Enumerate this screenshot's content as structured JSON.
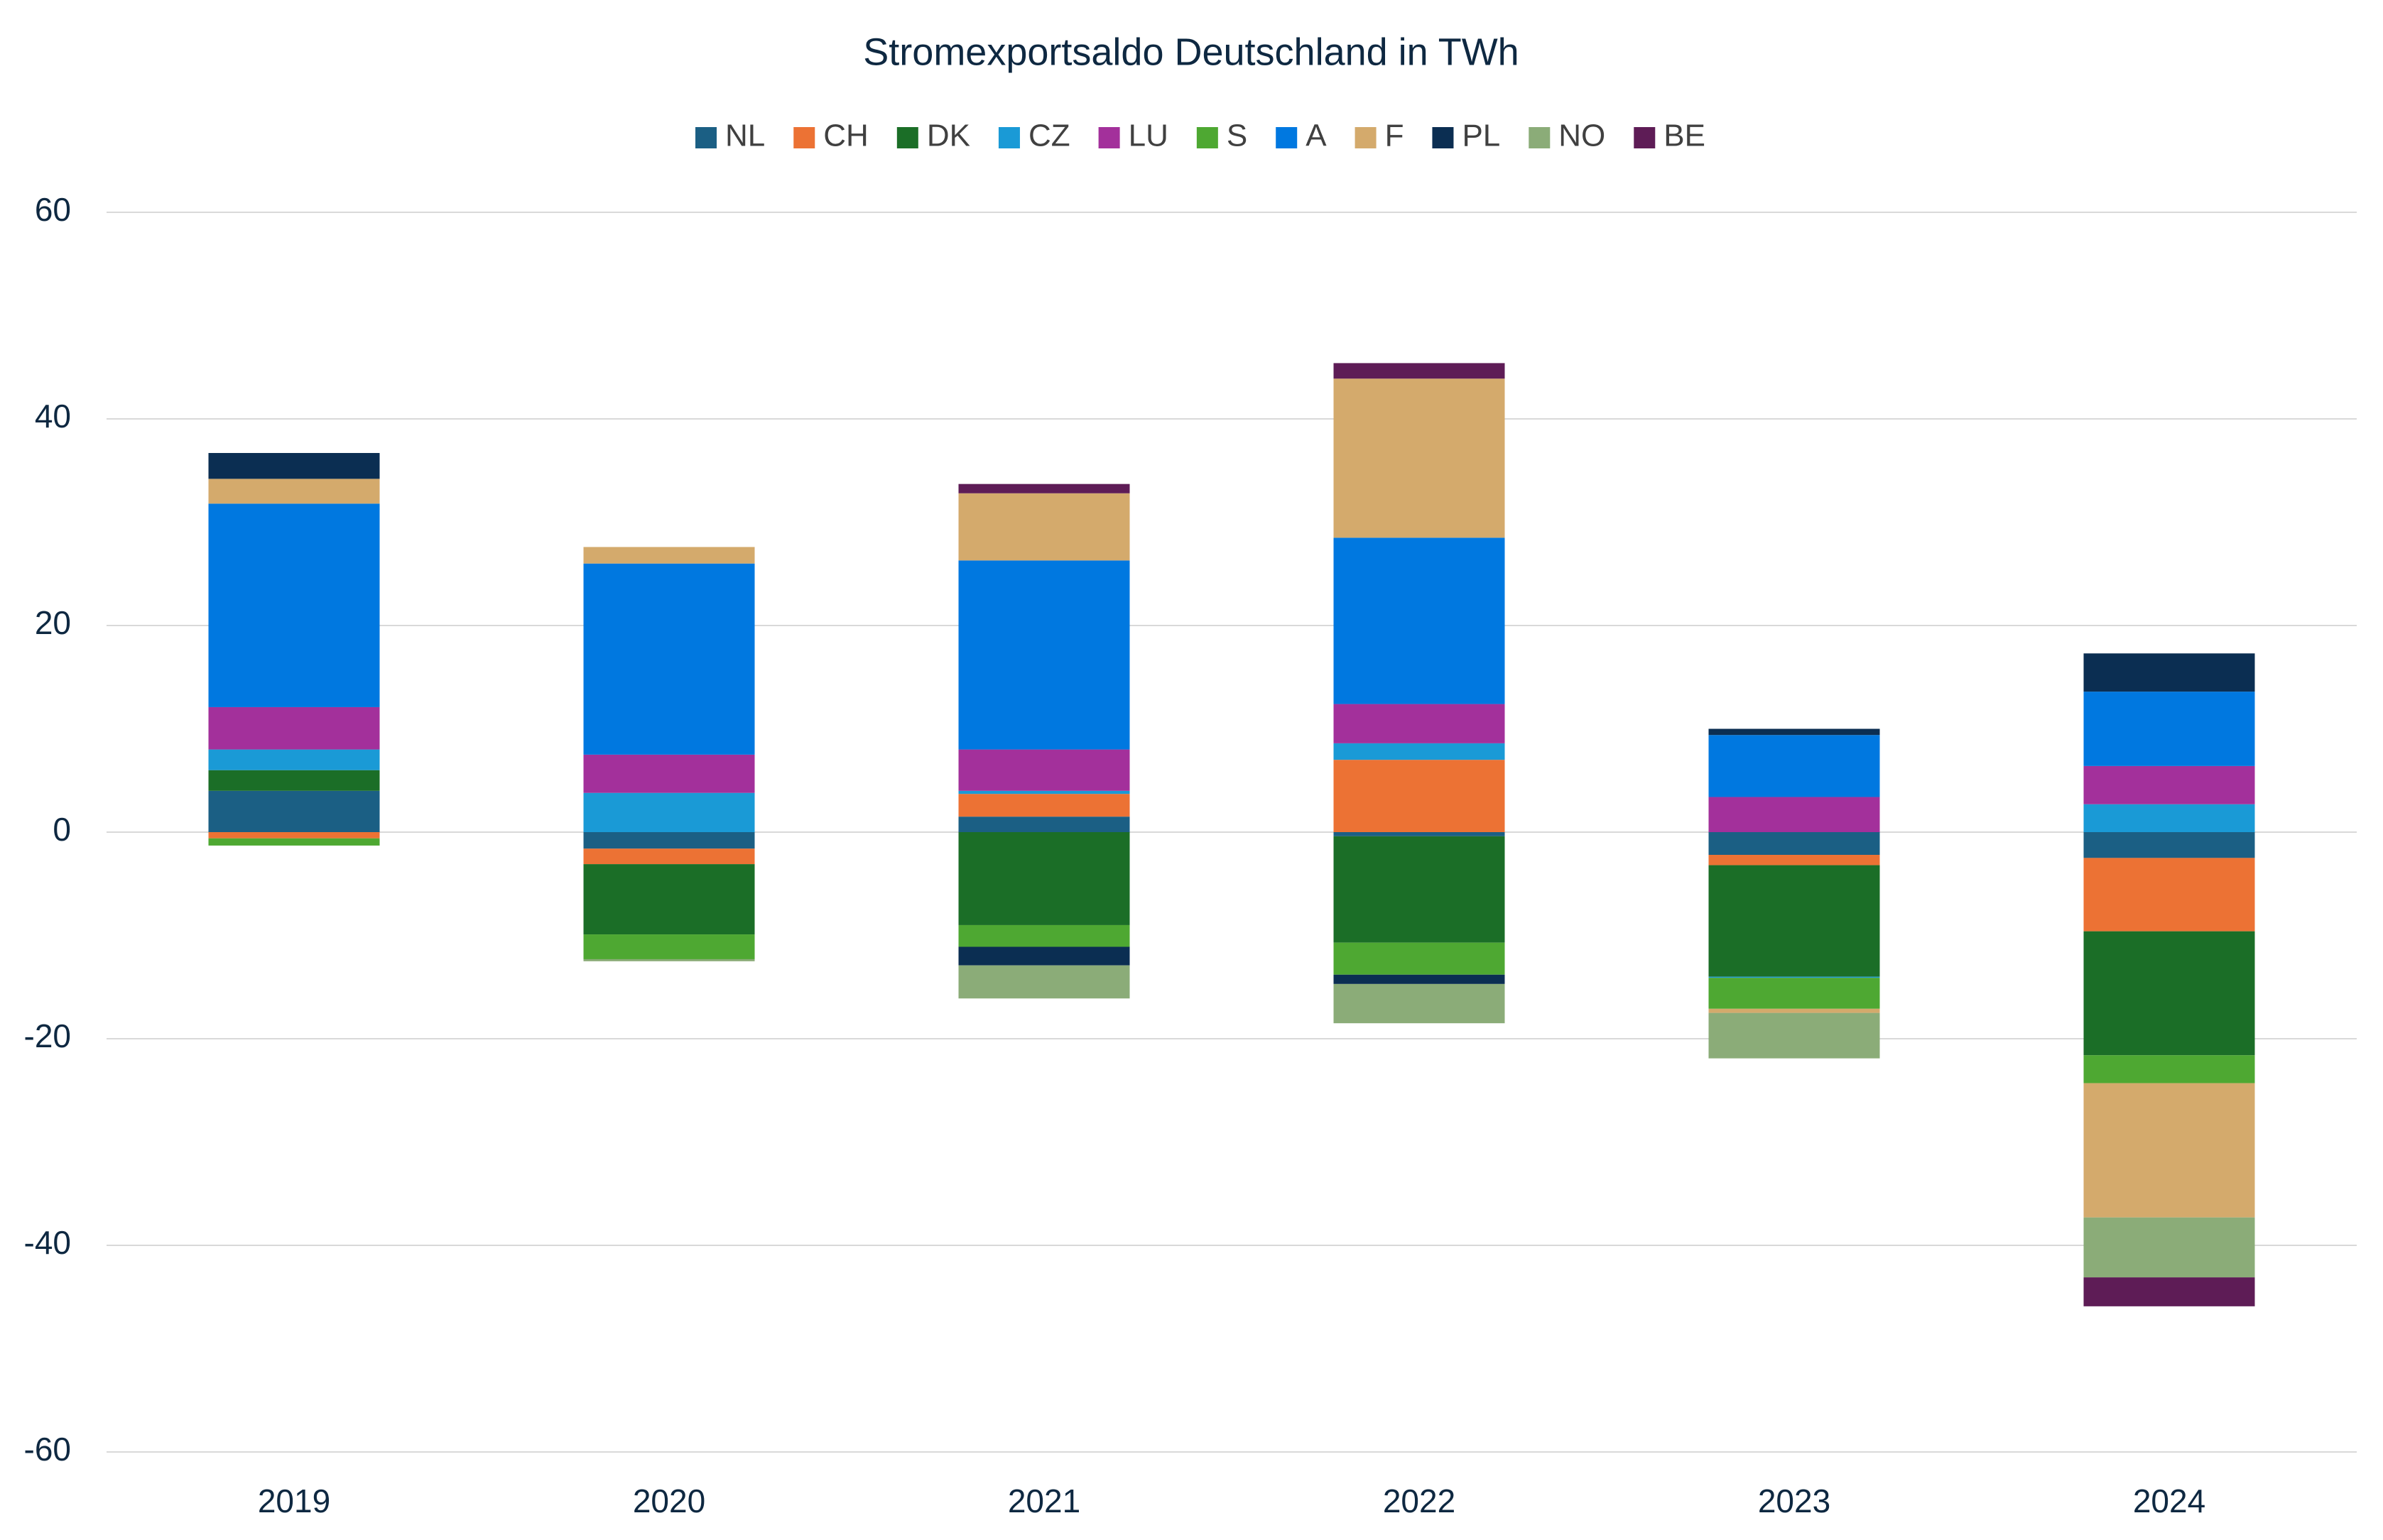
{
  "chart_data": {
    "type": "stacked-bar",
    "title": "Stromexportsaldo Deutschland in TWh",
    "categories": [
      "2019",
      "2020",
      "2021",
      "2022",
      "2023",
      "2024"
    ],
    "series": [
      {
        "name": "NL",
        "color": "#1b5f84",
        "values": [
          4.0,
          -1.6,
          1.5,
          -0.4,
          -2.2,
          -2.5
        ]
      },
      {
        "name": "CH",
        "color": "#ec7234",
        "values": [
          -0.6,
          -1.5,
          2.2,
          7.0,
          -1.0,
          -7.1
        ]
      },
      {
        "name": "DK",
        "color": "#1b6e27",
        "values": [
          2.0,
          -6.8,
          -9.0,
          -10.3,
          -10.8,
          -12.0
        ]
      },
      {
        "name": "CZ",
        "color": "#1a9ad6",
        "values": [
          2.0,
          3.8,
          0.3,
          1.6,
          -0.1,
          2.7
        ]
      },
      {
        "name": "LU",
        "color": "#a3309b",
        "values": [
          4.1,
          3.7,
          4.0,
          3.8,
          3.4,
          3.7
        ]
      },
      {
        "name": "S",
        "color": "#4ea832",
        "values": [
          -0.7,
          -2.4,
          -2.1,
          -3.1,
          -3.0,
          -2.7
        ]
      },
      {
        "name": "A",
        "color": "#0078e0",
        "values": [
          19.7,
          18.5,
          18.3,
          16.1,
          6.0,
          7.2
        ]
      },
      {
        "name": "F",
        "color": "#d4aa6c",
        "values": [
          2.4,
          1.6,
          6.5,
          15.4,
          -0.4,
          -13.0
        ]
      },
      {
        "name": "PL",
        "color": "#0b2e52",
        "values": [
          2.5,
          0,
          -1.8,
          -0.9,
          0.6,
          3.7
        ]
      },
      {
        "name": "NO",
        "color": "#8bac78",
        "values": [
          0,
          -0.2,
          -3.2,
          -3.8,
          -4.4,
          -5.8
        ]
      },
      {
        "name": "BE",
        "color": "#5e1c56",
        "values": [
          0,
          0,
          0.9,
          1.5,
          0,
          -2.8
        ]
      }
    ],
    "ylim": [
      -60,
      60
    ],
    "yticks": [
      -60,
      -40,
      -20,
      0,
      20,
      40,
      60
    ],
    "grid": true,
    "legend": "top"
  }
}
